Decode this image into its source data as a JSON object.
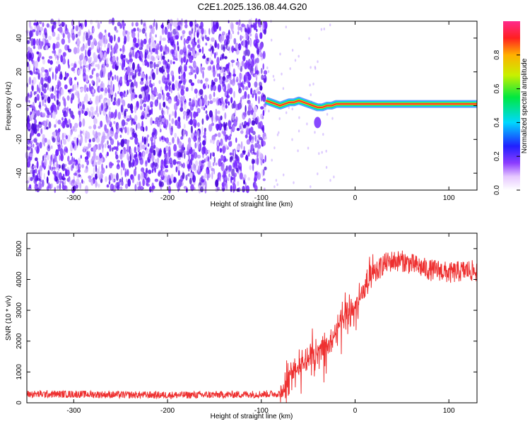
{
  "title": "C2E1.2025.136.08.44.G20",
  "chart_data": [
    {
      "type": "heatmap",
      "xlabel": "Height of straight line (km)",
      "ylabel": "Frequency (Hz)",
      "xlim": [
        -350,
        130
      ],
      "ylim": [
        -50,
        50
      ],
      "x_ticks": [
        -300,
        -200,
        -100,
        0,
        100
      ],
      "y_ticks": [
        -40,
        -20,
        0,
        20,
        40
      ],
      "noise_region": {
        "x_start": -350,
        "x_end": -95,
        "y_range": [
          -50,
          50
        ]
      },
      "signal_track": [
        {
          "x": -95,
          "y": 3
        },
        {
          "x": -90,
          "y": 2
        },
        {
          "x": -85,
          "y": 1
        },
        {
          "x": -80,
          "y": 0
        },
        {
          "x": -75,
          "y": 1
        },
        {
          "x": -70,
          "y": 2
        },
        {
          "x": -65,
          "y": 2
        },
        {
          "x": -60,
          "y": 3
        },
        {
          "x": -55,
          "y": 2
        },
        {
          "x": -50,
          "y": 1
        },
        {
          "x": -45,
          "y": 0
        },
        {
          "x": -40,
          "y": -1
        },
        {
          "x": -35,
          "y": -1
        },
        {
          "x": -30,
          "y": 0
        },
        {
          "x": -25,
          "y": 0
        },
        {
          "x": -20,
          "y": 1
        },
        {
          "x": -10,
          "y": 1
        },
        {
          "x": 0,
          "y": 1
        },
        {
          "x": 50,
          "y": 1
        },
        {
          "x": 100,
          "y": 1
        },
        {
          "x": 130,
          "y": 1
        }
      ],
      "colorbar": {
        "label": "Normalized spectral amplitude",
        "range": [
          0,
          1
        ],
        "ticks": [
          "0.0",
          "0.2",
          "0.4",
          "0.6",
          "0.8"
        ],
        "tick_values": [
          0,
          0.2,
          0.4,
          0.6,
          0.8
        ]
      },
      "colors": {
        "noise": "#6a1aff",
        "track_core": "#ff2a2a",
        "track_edge": "#00e08a"
      }
    },
    {
      "type": "line",
      "xlabel": "Height of straight line (km)",
      "ylabel": "SNR (10 * v/v)",
      "xlim": [
        -350,
        130
      ],
      "ylim": [
        0,
        5500
      ],
      "x_ticks": [
        -300,
        -200,
        -100,
        0,
        100
      ],
      "y_ticks": [
        0,
        1000,
        2000,
        3000,
        4000,
        5000
      ],
      "series": [
        {
          "color": "#ee3030",
          "points": [
            [
              -350,
              280
            ],
            [
              -300,
              280
            ],
            [
              -250,
              260
            ],
            [
              -200,
              250
            ],
            [
              -150,
              260
            ],
            [
              -100,
              280
            ],
            [
              -80,
              300
            ],
            [
              -75,
              500
            ],
            [
              -70,
              900
            ],
            [
              -65,
              1100
            ],
            [
              -60,
              1200
            ],
            [
              -55,
              1300
            ],
            [
              -50,
              1400
            ],
            [
              -45,
              1600
            ],
            [
              -40,
              1800
            ],
            [
              -35,
              1900
            ],
            [
              -30,
              1700
            ],
            [
              -25,
              2000
            ],
            [
              -20,
              2300
            ],
            [
              -15,
              2600
            ],
            [
              -10,
              2800
            ],
            [
              -5,
              3000
            ],
            [
              0,
              3100
            ],
            [
              5,
              3400
            ],
            [
              10,
              3600
            ],
            [
              15,
              3900
            ],
            [
              20,
              4100
            ],
            [
              25,
              4300
            ],
            [
              30,
              4500
            ],
            [
              40,
              4600
            ],
            [
              50,
              4600
            ],
            [
              60,
              4500
            ],
            [
              70,
              4400
            ],
            [
              80,
              4300
            ],
            [
              90,
              4300
            ],
            [
              100,
              4200
            ],
            [
              110,
              4250
            ],
            [
              120,
              4300
            ],
            [
              130,
              4250
            ]
          ]
        }
      ]
    }
  ]
}
